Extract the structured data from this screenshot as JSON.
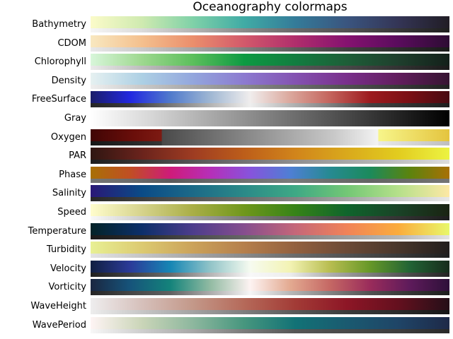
{
  "title": "Oceanography colormaps",
  "colormaps": [
    {
      "name": "Bathymetry",
      "stops": [
        "#fbfbc9",
        "#cfeab0",
        "#7fd1a8",
        "#40aba5",
        "#347b99",
        "#3a557f",
        "#343556",
        "#211d25"
      ]
    },
    {
      "name": "CDOM",
      "stops": [
        "#f8e8c0",
        "#f4c08e",
        "#ea8e6c",
        "#d2596b",
        "#b02e6c",
        "#851270",
        "#5a0c5d",
        "#2d0c33"
      ]
    },
    {
      "name": "Chlorophyll",
      "stops": [
        "#d8f6da",
        "#9ed88f",
        "#5cbf5c",
        "#0d9a42",
        "#127d40",
        "#1e5e38",
        "#1f3f2d",
        "#13201a"
      ]
    },
    {
      "name": "Density",
      "stops": [
        "#e6f1f1",
        "#add0e4",
        "#93a6dd",
        "#8c7ad0",
        "#8452b1",
        "#792f8b",
        "#621d5d",
        "#361431"
      ]
    },
    {
      "name": "FreeSurface",
      "stops": [
        "#1b1d69",
        "#2228e0",
        "#507acc",
        "#9fb7d3",
        "#f0eded",
        "#dba89d",
        "#c4645d",
        "#9d1b1f",
        "#7a0f14",
        "#470b12"
      ]
    },
    {
      "name": "Gray",
      "stops": [
        "#ffffff",
        "#d7d7d7",
        "#aaaaaa",
        "#7f7f7f",
        "#555555",
        "#2a2a2a",
        "#000000"
      ]
    },
    {
      "name": "Oxygen",
      "stops": [
        "#400505",
        "#6a0e0a",
        "#7d1a12",
        "#4a4a4a",
        "#8c8c8c",
        "#c9c9c9",
        "#f3f3f3",
        "#f7f58a",
        "#e4c43e"
      ],
      "positions": [
        0,
        0.12,
        0.197,
        0.2,
        0.45,
        0.68,
        0.8,
        0.803,
        1
      ]
    },
    {
      "name": "PAR",
      "stops": [
        "#2f1612",
        "#6a231c",
        "#9e3c22",
        "#bd5e1a",
        "#d1851b",
        "#d9a91c",
        "#e2cc1f",
        "#ecf342"
      ]
    },
    {
      "name": "Phase",
      "stops": [
        "#a87006",
        "#c14e24",
        "#ce1b7a",
        "#b62fb8",
        "#8753dc",
        "#4f7fd4",
        "#268a92",
        "#1b8a5c",
        "#5b830e",
        "#a87006"
      ]
    },
    {
      "name": "Salinity",
      "stops": [
        "#2a1877",
        "#0a4b87",
        "#1c6a88",
        "#2b8a88",
        "#3ea985",
        "#73c775",
        "#b5e08a",
        "#fde8a5"
      ]
    },
    {
      "name": "Speed",
      "stops": [
        "#fffdcd",
        "#d6d38c",
        "#a9ae46",
        "#6f971b",
        "#368317",
        "#0f652c",
        "#1a4327",
        "#1a2312"
      ]
    },
    {
      "name": "Temperature",
      "stops": [
        "#032327",
        "#0c2f6a",
        "#4d3d8c",
        "#864e8e",
        "#c56779",
        "#f18358",
        "#fbac3c",
        "#e8f86b"
      ]
    },
    {
      "name": "Turbidity",
      "stops": [
        "#e8f094",
        "#dcca71",
        "#cba25a",
        "#b57f4c",
        "#92603f",
        "#6b4a37",
        "#48362b",
        "#221e1d"
      ]
    },
    {
      "name": "Velocity",
      "stops": [
        "#111f41",
        "#2b3b99",
        "#1686b4",
        "#91c4c8",
        "#f6fbf0",
        "#f3f3b4",
        "#b8bd50",
        "#679828",
        "#226435",
        "#172b1c"
      ]
    },
    {
      "name": "Vorticity",
      "stops": [
        "#1a2640",
        "#16547b",
        "#14837b",
        "#92bba3",
        "#fdf3f2",
        "#e3aa91",
        "#c56864",
        "#9a2c5b",
        "#5e1b5b",
        "#2e1039"
      ]
    },
    {
      "name": "WaveHeight",
      "stops": [
        "#eeedee",
        "#d6c0bb",
        "#c39889",
        "#b56959",
        "#a23b36",
        "#8d1626",
        "#64101e",
        "#240f18"
      ]
    },
    {
      "name": "WavePeriod",
      "stops": [
        "#fef4f4",
        "#cad5b8",
        "#8db79e",
        "#46967e",
        "#127276",
        "#1a5a70",
        "#1f4567",
        "#1e2948"
      ]
    }
  ]
}
